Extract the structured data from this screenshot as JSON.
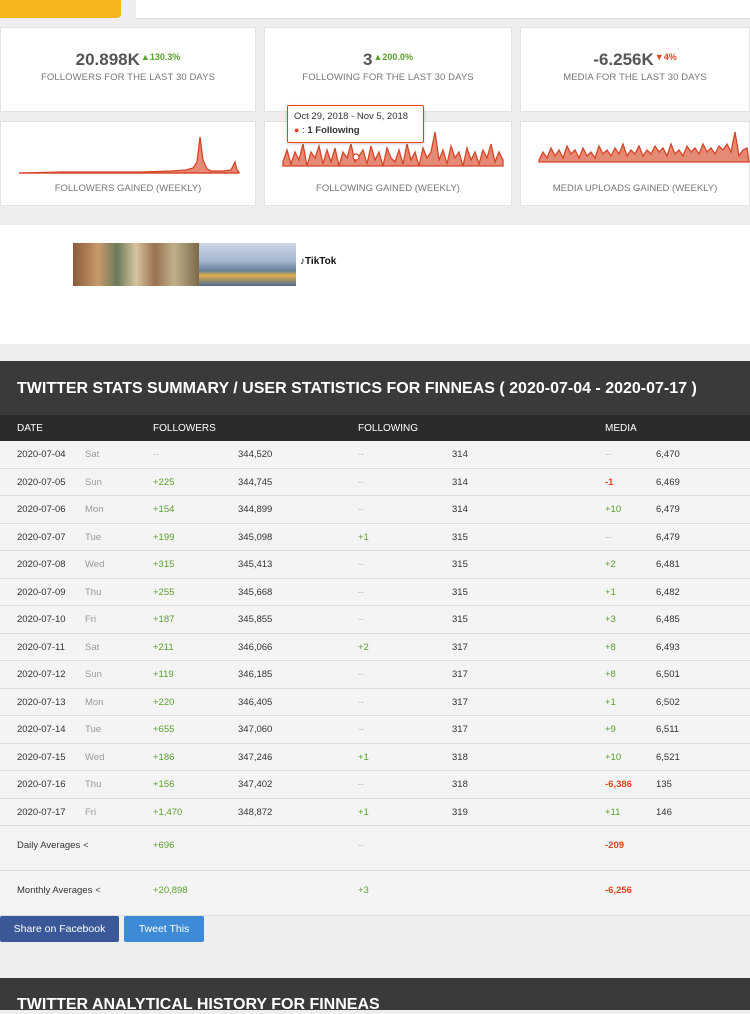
{
  "colors": {
    "accent_yellow": "#f5b51c",
    "positive": "#5aa02c",
    "negative": "#e2431e",
    "chart_red": "#d64528",
    "header_dark": "#3a3a3a",
    "facebook": "#3b5998",
    "twitter": "#3d8ad6"
  },
  "stats": [
    {
      "value": "20.898K",
      "change": "130.3%",
      "change_dir": "up",
      "label": "FOLLOWERS FOR THE LAST 30 DAYS"
    },
    {
      "value": "3",
      "change": "200.0%",
      "change_dir": "up",
      "label": "FOLLOWING FOR THE LAST 30 DAYS"
    },
    {
      "value": "-6.256K",
      "change": "4%",
      "change_dir": "down",
      "label": "MEDIA FOR THE LAST 30 DAYS"
    }
  ],
  "charts": [
    {
      "label": "FOLLOWERS GAINED (WEEKLY)"
    },
    {
      "label": "FOLLOWING GAINED (WEEKLY)"
    },
    {
      "label": "MEDIA UPLOADS GAINED (WEEKLY)"
    }
  ],
  "tooltip": {
    "range": "Oct 29, 2018 - Nov 5, 2018",
    "value": "1 Following"
  },
  "ad": {
    "tiktok_label": "TikTok",
    "tiktok_icon": "tiktok-logo-icon"
  },
  "summary": {
    "title": "TWITTER STATS SUMMARY / USER STATISTICS FOR FINNEAS ( 2020-07-04 - 2020-07-17 )",
    "columns": {
      "date": "DATE",
      "followers": "FOLLOWERS",
      "following": "FOLLOWING",
      "media": "MEDIA"
    },
    "rows": [
      {
        "date": "2020-07-04",
        "day": "Sat",
        "f_delta": "--",
        "f_total": "344,520",
        "g_delta": "--",
        "g_total": "314",
        "m_delta": "--",
        "m_total": "6,470"
      },
      {
        "date": "2020-07-05",
        "day": "Sun",
        "f_delta": "+225",
        "f_total": "344,745",
        "g_delta": "--",
        "g_total": "314",
        "m_delta": "-1",
        "m_total": "6,469"
      },
      {
        "date": "2020-07-06",
        "day": "Mon",
        "f_delta": "+154",
        "f_total": "344,899",
        "g_delta": "--",
        "g_total": "314",
        "m_delta": "+10",
        "m_total": "6,479"
      },
      {
        "date": "2020-07-07",
        "day": "Tue",
        "f_delta": "+199",
        "f_total": "345,098",
        "g_delta": "+1",
        "g_total": "315",
        "m_delta": "--",
        "m_total": "6,479"
      },
      {
        "date": "2020-07-08",
        "day": "Wed",
        "f_delta": "+315",
        "f_total": "345,413",
        "g_delta": "--",
        "g_total": "315",
        "m_delta": "+2",
        "m_total": "6,481"
      },
      {
        "date": "2020-07-09",
        "day": "Thu",
        "f_delta": "+255",
        "f_total": "345,668",
        "g_delta": "--",
        "g_total": "315",
        "m_delta": "+1",
        "m_total": "6,482"
      },
      {
        "date": "2020-07-10",
        "day": "Fri",
        "f_delta": "+187",
        "f_total": "345,855",
        "g_delta": "--",
        "g_total": "315",
        "m_delta": "+3",
        "m_total": "6,485"
      },
      {
        "date": "2020-07-11",
        "day": "Sat",
        "f_delta": "+211",
        "f_total": "346,066",
        "g_delta": "+2",
        "g_total": "317",
        "m_delta": "+8",
        "m_total": "6,493"
      },
      {
        "date": "2020-07-12",
        "day": "Sun",
        "f_delta": "+119",
        "f_total": "346,185",
        "g_delta": "--",
        "g_total": "317",
        "m_delta": "+8",
        "m_total": "6,501"
      },
      {
        "date": "2020-07-13",
        "day": "Mon",
        "f_delta": "+220",
        "f_total": "346,405",
        "g_delta": "--",
        "g_total": "317",
        "m_delta": "+1",
        "m_total": "6,502"
      },
      {
        "date": "2020-07-14",
        "day": "Tue",
        "f_delta": "+655",
        "f_total": "347,060",
        "g_delta": "--",
        "g_total": "317",
        "m_delta": "+9",
        "m_total": "6,511"
      },
      {
        "date": "2020-07-15",
        "day": "Wed",
        "f_delta": "+186",
        "f_total": "347,246",
        "g_delta": "+1",
        "g_total": "318",
        "m_delta": "+10",
        "m_total": "6,521"
      },
      {
        "date": "2020-07-16",
        "day": "Thu",
        "f_delta": "+156",
        "f_total": "347,402",
        "g_delta": "--",
        "g_total": "318",
        "m_delta": "-6,386",
        "m_total": "135"
      },
      {
        "date": "2020-07-17",
        "day": "Fri",
        "f_delta": "+1,470",
        "f_total": "348,872",
        "g_delta": "+1",
        "g_total": "319",
        "m_delta": "+11",
        "m_total": "146"
      }
    ],
    "daily_avg": {
      "label": "Daily Averages",
      "followers": "+696",
      "following": "--",
      "media": "-209"
    },
    "monthly_avg": {
      "label": "Monthly Averages",
      "followers": "+20,898",
      "following": "+3",
      "media": "-6,256"
    }
  },
  "buttons": {
    "share_facebook": "Share on Facebook",
    "tweet": "Tweet This"
  },
  "history": {
    "title": "TWITTER ANALYTICAL HISTORY FOR FINNEAS"
  }
}
